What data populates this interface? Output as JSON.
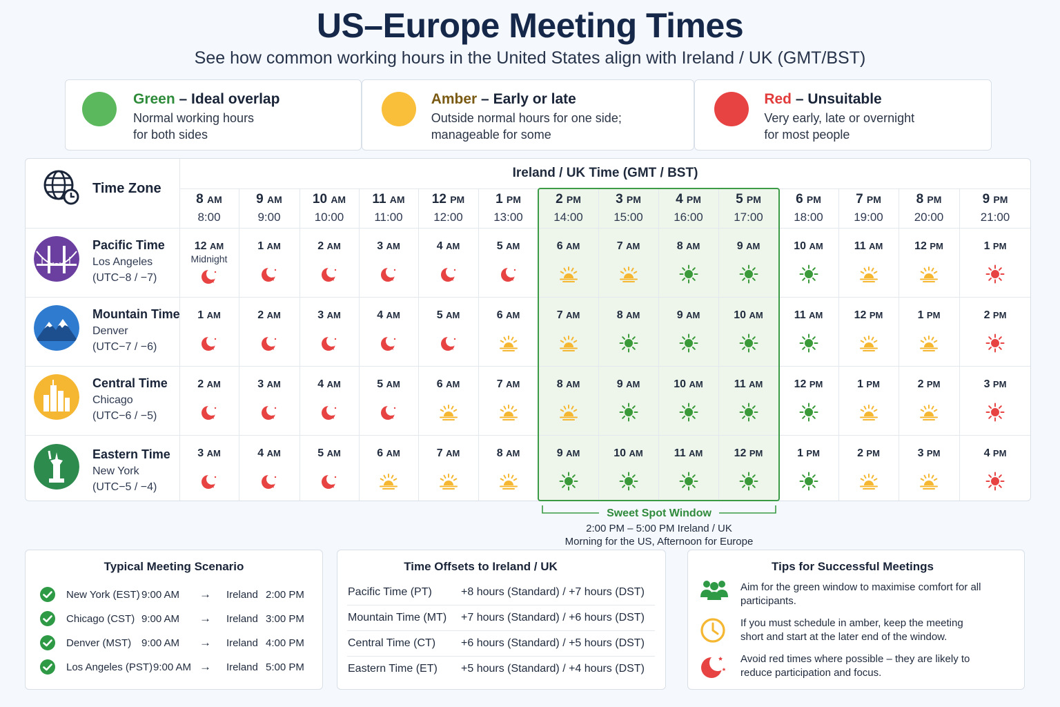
{
  "header": {
    "title": "US–Europe Meeting Times",
    "subtitle": "See how common working hours in the United States align with Ireland / UK (GMT/BST)"
  },
  "legend": [
    {
      "color_word": "Green",
      "rest": " – Ideal overlap",
      "desc": "Normal working hours\nfor both sides",
      "color": "#5cb85c",
      "text_color": "#2e8b3a"
    },
    {
      "color_word": "Amber",
      "rest": " – Early or late",
      "desc": "Outside normal hours for one side;\nmanageable for some",
      "color": "#f9bf3b",
      "text_color": "#7a5a12"
    },
    {
      "color_word": "Red",
      "rest": " – Unsuitable",
      "desc": "Very early, late or overnight\nfor most people",
      "color": "#e84343",
      "text_color": "#e23b3b"
    }
  ],
  "grid": {
    "corner_label": "Time Zone",
    "corner_icon": "globe-clock-icon",
    "uk_header": "Ireland / UK Time (GMT / BST)",
    "columns": [
      {
        "t12": "8",
        "ap": "AM",
        "t24": "8:00"
      },
      {
        "t12": "9",
        "ap": "AM",
        "t24": "9:00"
      },
      {
        "t12": "10",
        "ap": "AM",
        "t24": "10:00"
      },
      {
        "t12": "11",
        "ap": "AM",
        "t24": "11:00"
      },
      {
        "t12": "12",
        "ap": "PM",
        "t24": "12:00"
      },
      {
        "t12": "1",
        "ap": "PM",
        "t24": "13:00"
      },
      {
        "t12": "2",
        "ap": "PM",
        "t24": "14:00"
      },
      {
        "t12": "3",
        "ap": "PM",
        "t24": "15:00"
      },
      {
        "t12": "4",
        "ap": "PM",
        "t24": "16:00"
      },
      {
        "t12": "5",
        "ap": "PM",
        "t24": "17:00"
      },
      {
        "t12": "6",
        "ap": "PM",
        "t24": "18:00"
      },
      {
        "t12": "7",
        "ap": "PM",
        "t24": "19:00"
      },
      {
        "t12": "8",
        "ap": "PM",
        "t24": "20:00"
      },
      {
        "t12": "9",
        "ap": "PM",
        "t24": "21:00"
      }
    ],
    "rows": [
      {
        "zone": "Pacific Time",
        "city": "Los Angeles",
        "offset": "(UTC−8 / −7)",
        "avatar": "golden-gate-bridge-icon",
        "avatar_color": "#6b3fa0",
        "cells": [
          [
            "12",
            "AM",
            "moon",
            "Midnight"
          ],
          [
            "1",
            "AM",
            "moon"
          ],
          [
            "2",
            "AM",
            "moon"
          ],
          [
            "3",
            "AM",
            "moon"
          ],
          [
            "4",
            "AM",
            "moon"
          ],
          [
            "5",
            "AM",
            "moon"
          ],
          [
            "6",
            "AM",
            "sunrise"
          ],
          [
            "7",
            "AM",
            "sunrise"
          ],
          [
            "8",
            "AM",
            "sun"
          ],
          [
            "9",
            "AM",
            "sun"
          ],
          [
            "10",
            "AM",
            "sun"
          ],
          [
            "11",
            "AM",
            "sunrise"
          ],
          [
            "12",
            "PM",
            "sunrise"
          ],
          [
            "1",
            "PM",
            "red-sun"
          ]
        ]
      },
      {
        "zone": "Mountain Time",
        "city": "Denver",
        "offset": "(UTC−7 / −6)",
        "avatar": "mountain-icon",
        "avatar_color": "#2f7bd0",
        "cells": [
          [
            "1",
            "AM",
            "moon"
          ],
          [
            "2",
            "AM",
            "moon"
          ],
          [
            "3",
            "AM",
            "moon"
          ],
          [
            "4",
            "AM",
            "moon"
          ],
          [
            "5",
            "AM",
            "moon"
          ],
          [
            "6",
            "AM",
            "sunrise"
          ],
          [
            "7",
            "AM",
            "sunrise"
          ],
          [
            "8",
            "AM",
            "sun"
          ],
          [
            "9",
            "AM",
            "sun"
          ],
          [
            "10",
            "AM",
            "sun"
          ],
          [
            "11",
            "AM",
            "sun"
          ],
          [
            "12",
            "PM",
            "sunrise"
          ],
          [
            "1",
            "PM",
            "sunrise"
          ],
          [
            "2",
            "PM",
            "red-sun"
          ]
        ]
      },
      {
        "zone": "Central Time",
        "city": "Chicago",
        "offset": "(UTC−6 / −5)",
        "avatar": "chicago-skyline-icon",
        "avatar_color": "#f5b731",
        "cells": [
          [
            "2",
            "AM",
            "moon"
          ],
          [
            "3",
            "AM",
            "moon"
          ],
          [
            "4",
            "AM",
            "moon"
          ],
          [
            "5",
            "AM",
            "moon"
          ],
          [
            "6",
            "AM",
            "sunrise"
          ],
          [
            "7",
            "AM",
            "sunrise"
          ],
          [
            "8",
            "AM",
            "sunrise"
          ],
          [
            "9",
            "AM",
            "sun"
          ],
          [
            "10",
            "AM",
            "sun"
          ],
          [
            "11",
            "AM",
            "sun"
          ],
          [
            "12",
            "PM",
            "sun"
          ],
          [
            "1",
            "PM",
            "sunrise"
          ],
          [
            "2",
            "PM",
            "sunrise"
          ],
          [
            "3",
            "PM",
            "red-sun"
          ]
        ]
      },
      {
        "zone": "Eastern Time",
        "city": "New York",
        "offset": "(UTC−5 / −4)",
        "avatar": "statue-of-liberty-icon",
        "avatar_color": "#2e8b4e",
        "cells": [
          [
            "3",
            "AM",
            "moon"
          ],
          [
            "4",
            "AM",
            "moon"
          ],
          [
            "5",
            "AM",
            "moon"
          ],
          [
            "6",
            "AM",
            "sunrise"
          ],
          [
            "7",
            "AM",
            "sunrise"
          ],
          [
            "8",
            "AM",
            "sunrise"
          ],
          [
            "9",
            "AM",
            "sun"
          ],
          [
            "10",
            "AM",
            "sun"
          ],
          [
            "11",
            "AM",
            "sun"
          ],
          [
            "12",
            "PM",
            "sun"
          ],
          [
            "1",
            "PM",
            "sun"
          ],
          [
            "2",
            "PM",
            "sunrise"
          ],
          [
            "3",
            "PM",
            "sunrise"
          ],
          [
            "4",
            "PM",
            "red-sun"
          ]
        ]
      }
    ]
  },
  "sweet_spot": {
    "label": "Sweet Spot Window",
    "line1": "2:00 PM – 5:00 PM Ireland / UK",
    "line2": "Morning for the US, Afternoon for Europe"
  },
  "scenario": {
    "title": "Typical Meeting Scenario",
    "rows": [
      {
        "us": "New York (EST)",
        "us_time": "9:00 AM",
        "arrow": "→",
        "dest": "Ireland",
        "dest_time": "2:00 PM"
      },
      {
        "us": "Chicago (CST)",
        "us_time": "9:00 AM",
        "arrow": "→",
        "dest": "Ireland",
        "dest_time": "3:00 PM"
      },
      {
        "us": "Denver (MST)",
        "us_time": "9:00 AM",
        "arrow": "→",
        "dest": "Ireland",
        "dest_time": "4:00 PM"
      },
      {
        "us": "Los Angeles (PST)",
        "us_time": "9:00 AM",
        "arrow": "→",
        "dest": "Ireland",
        "dest_time": "5:00 PM"
      }
    ]
  },
  "offsets": {
    "title": "Time Offsets to Ireland / UK",
    "rows": [
      {
        "zone": "Pacific Time (PT)",
        "offset": "+8 hours (Standard) / +7 hours (DST)"
      },
      {
        "zone": "Mountain Time (MT)",
        "offset": "+7 hours (Standard) / +6 hours (DST)"
      },
      {
        "zone": "Central Time (CT)",
        "offset": "+6 hours (Standard) / +5 hours (DST)"
      },
      {
        "zone": "Eastern Time (ET)",
        "offset": "+5 hours (Standard) / +4 hours (DST)"
      }
    ]
  },
  "tips": {
    "title": "Tips for Successful Meetings",
    "rows": [
      {
        "icon": "people-group-icon",
        "text": "Aim for the green window to maximise comfort for all participants."
      },
      {
        "icon": "clock-icon",
        "text": "If you must schedule in amber, keep the meeting short and start at the later end of the window."
      },
      {
        "icon": "moon-icon",
        "text": "Avoid red times where possible – they are likely to reduce participation and focus."
      }
    ]
  }
}
